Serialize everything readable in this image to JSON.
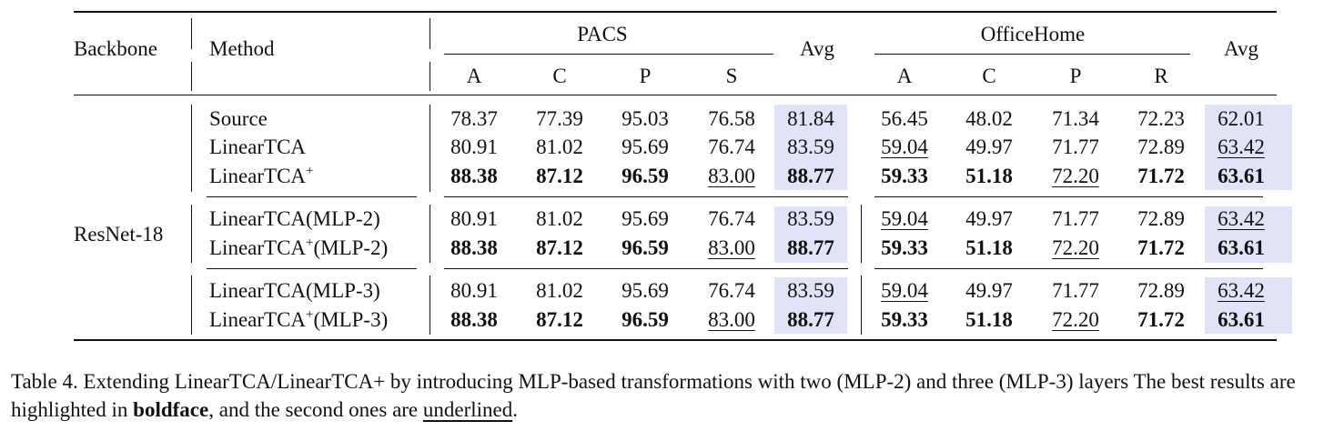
{
  "table": {
    "headers": {
      "backbone": "Backbone",
      "method": "Method",
      "group1": "PACS",
      "group2": "OfficeHome",
      "avg": "Avg",
      "pacs_cols": [
        "A",
        "C",
        "P",
        "S"
      ],
      "office_cols": [
        "A",
        "C",
        "P",
        "R"
      ]
    },
    "backbone": "ResNet-18",
    "rows": [
      {
        "method": "Source",
        "sup": "",
        "suffix": "",
        "pacs": [
          "78.37",
          "77.39",
          "95.03",
          "76.58"
        ],
        "pacs_avg": "81.84",
        "office": [
          "56.45",
          "48.02",
          "71.34",
          "72.23"
        ],
        "office_avg": "62.01"
      },
      {
        "method": "LinearTCA",
        "sup": "",
        "suffix": "",
        "pacs": [
          "80.91",
          "81.02",
          "95.69",
          "76.74"
        ],
        "pacs_avg": "83.59",
        "office": [
          "59.04",
          "49.97",
          "71.77",
          "72.89"
        ],
        "office_avg": "63.42"
      },
      {
        "method": "LinearTCA",
        "sup": "+",
        "suffix": "",
        "pacs": [
          "88.38",
          "87.12",
          "96.59",
          "83.00"
        ],
        "pacs_avg": "88.77",
        "office": [
          "59.33",
          "51.18",
          "72.20",
          "71.72"
        ],
        "office_avg": "63.61"
      },
      {
        "method": "LinearTCA",
        "sup": "",
        "suffix": "(MLP-2)",
        "pacs": [
          "80.91",
          "81.02",
          "95.69",
          "76.74"
        ],
        "pacs_avg": "83.59",
        "office": [
          "59.04",
          "49.97",
          "71.77",
          "72.89"
        ],
        "office_avg": "63.42"
      },
      {
        "method": "LinearTCA",
        "sup": "+",
        "suffix": "(MLP-2)",
        "pacs": [
          "88.38",
          "87.12",
          "96.59",
          "83.00"
        ],
        "pacs_avg": "88.77",
        "office": [
          "59.33",
          "51.18",
          "72.20",
          "71.72"
        ],
        "office_avg": "63.61"
      },
      {
        "method": "LinearTCA",
        "sup": "",
        "suffix": "(MLP-3)",
        "pacs": [
          "80.91",
          "81.02",
          "95.69",
          "76.74"
        ],
        "pacs_avg": "83.59",
        "office": [
          "59.04",
          "49.97",
          "71.77",
          "72.89"
        ],
        "office_avg": "63.42"
      },
      {
        "method": "LinearTCA",
        "sup": "+",
        "suffix": "(MLP-3)",
        "pacs": [
          "88.38",
          "87.12",
          "96.59",
          "83.00"
        ],
        "pacs_avg": "88.77",
        "office": [
          "59.33",
          "51.18",
          "72.20",
          "71.72"
        ],
        "office_avg": "63.61"
      }
    ],
    "highlight_color": "#e3e3f8"
  },
  "caption": {
    "text1": "Table 4. Extending LinearTCA/LinearTCA+ by introducing MLP-based transformations with two (MLP-2) and three (MLP-3) layers The best results are highlighted in ",
    "bold": "boldface",
    "text2": ", and the second ones are ",
    "underlined": "underlined",
    "text3": "."
  }
}
